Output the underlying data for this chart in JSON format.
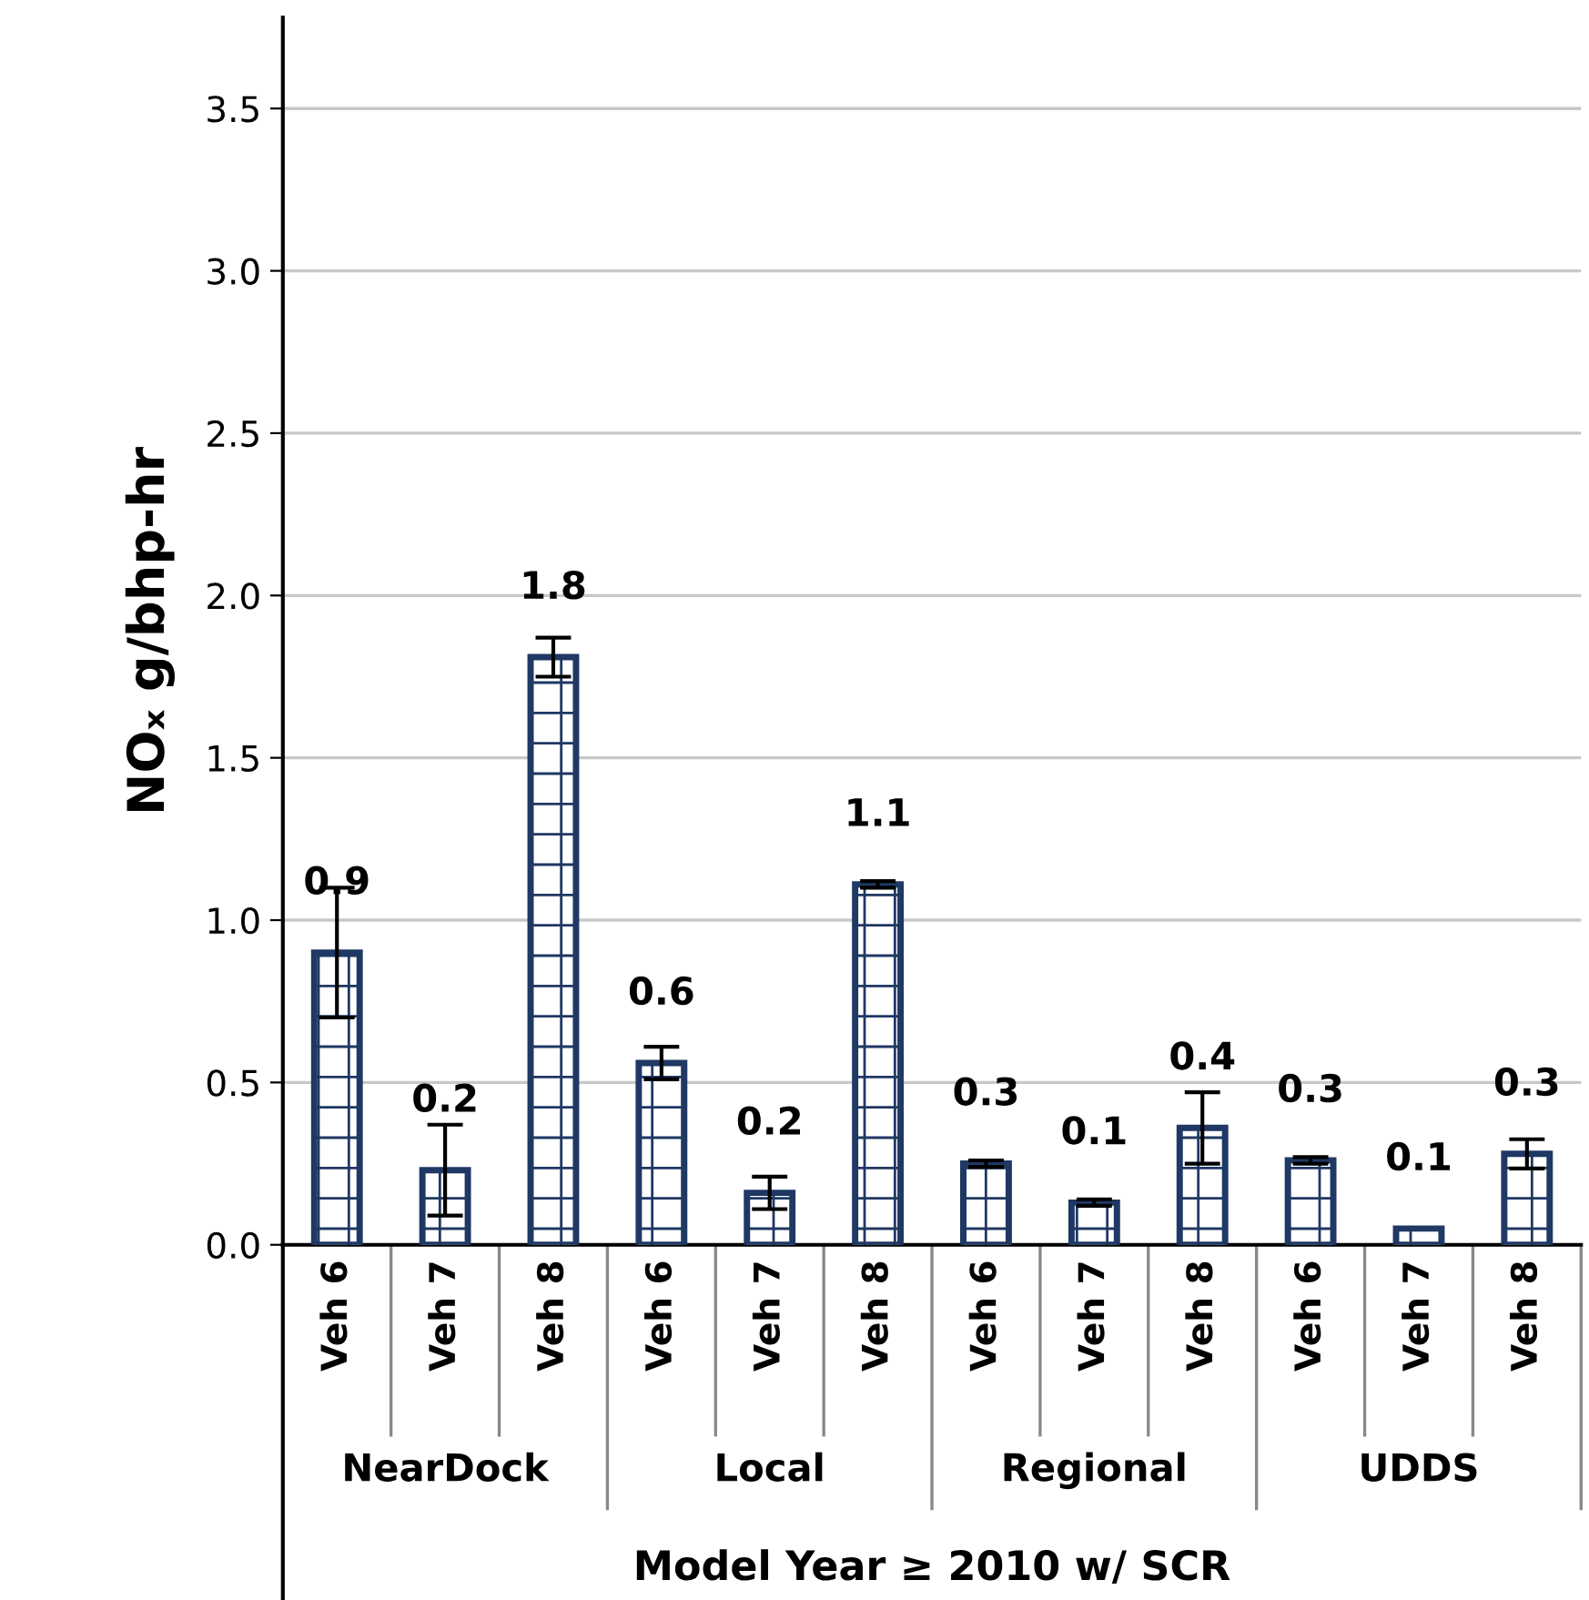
{
  "chart_data": {
    "type": "bar",
    "xlabel": "Model Year ≥ 2010 w/ SCR",
    "ylabel": "NOₓ g/bhp-hr",
    "categories": [
      "Veh 6",
      "Veh 7",
      "Veh 8",
      "Veh 6",
      "Veh 7",
      "Veh 8",
      "Veh 6",
      "Veh 7",
      "Veh 8",
      "Veh 6",
      "Veh 7",
      "Veh 8"
    ],
    "series": [
      {
        "color": "#1f3864",
        "values": [
          0.9,
          0.23,
          1.81,
          0.56,
          0.16,
          1.11,
          0.25,
          0.13,
          0.36,
          0.26,
          0.05,
          0.28
        ],
        "errors": [
          0.2,
          0.14,
          0.06,
          0.05,
          0.05,
          0.01,
          0.01,
          0.01,
          0.11,
          0.01,
          null,
          0.045
        ],
        "value_labels": [
          "0.9",
          "0.2",
          "1.8",
          "0.6",
          "0.2",
          "1.1",
          "0.3",
          "0.1",
          "0.4",
          "0.3",
          "0.1",
          "0.3"
        ]
      }
    ],
    "annotations": [
      "NearDock",
      "Local",
      "Regional",
      "UDDS"
    ],
    "ylim": [
      0,
      3.78
    ],
    "yticks": [
      {
        "value": 0,
        "label": "0.0"
      },
      {
        "value": 0.5,
        "label": "0.5"
      },
      {
        "value": 1,
        "label": "1.0"
      },
      {
        "value": 1.5,
        "label": "1.5"
      },
      {
        "value": 2,
        "label": "2.0"
      },
      {
        "value": 2.5,
        "label": "2.5"
      },
      {
        "value": 3,
        "label": "3.0"
      },
      {
        "value": 3.5,
        "label": "3.5"
      }
    ],
    "grid": "y",
    "legend": false
  }
}
